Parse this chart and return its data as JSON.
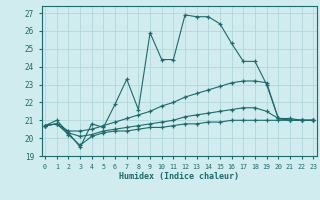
{
  "xlabel": "Humidex (Indice chaleur)",
  "background_color": "#d0ecee",
  "grid_color": "#b0d8dc",
  "line_color": "#1a6b6b",
  "xlim": [
    0,
    23
  ],
  "ylim": [
    19,
    27.4
  ],
  "xticks": [
    0,
    1,
    2,
    3,
    4,
    5,
    6,
    7,
    8,
    9,
    10,
    11,
    12,
    13,
    14,
    15,
    16,
    17,
    18,
    19,
    20,
    21,
    22,
    23
  ],
  "yticks": [
    19,
    20,
    21,
    22,
    23,
    24,
    25,
    26,
    27
  ],
  "series": [
    {
      "x": [
        0,
        1,
        2,
        3,
        4,
        5,
        6,
        7,
        8,
        9,
        10,
        11,
        12,
        13,
        14,
        15,
        16,
        17,
        18,
        19,
        20,
        21,
        22,
        23
      ],
      "y": [
        20.7,
        21.0,
        20.3,
        19.5,
        20.8,
        20.6,
        21.9,
        23.3,
        21.6,
        25.9,
        24.4,
        24.4,
        26.9,
        26.8,
        26.8,
        26.4,
        25.3,
        24.3,
        24.3,
        23.0,
        21.1,
        21.1,
        21.0,
        21.0
      ]
    },
    {
      "x": [
        0,
        1,
        2,
        3,
        4,
        5,
        6,
        7,
        8,
        9,
        10,
        11,
        12,
        13,
        14,
        15,
        16,
        17,
        18,
        19,
        20,
        21,
        22,
        23
      ],
      "y": [
        20.7,
        20.8,
        20.4,
        20.4,
        20.5,
        20.7,
        20.9,
        21.1,
        21.3,
        21.5,
        21.8,
        22.0,
        22.3,
        22.5,
        22.7,
        22.9,
        23.1,
        23.2,
        23.2,
        23.1,
        21.1,
        21.0,
        21.0,
        21.0
      ]
    },
    {
      "x": [
        0,
        1,
        2,
        3,
        4,
        5,
        6,
        7,
        8,
        9,
        10,
        11,
        12,
        13,
        14,
        15,
        16,
        17,
        18,
        19,
        20,
        21,
        22,
        23
      ],
      "y": [
        20.7,
        20.8,
        20.3,
        20.1,
        20.2,
        20.4,
        20.5,
        20.6,
        20.7,
        20.8,
        20.9,
        21.0,
        21.2,
        21.3,
        21.4,
        21.5,
        21.6,
        21.7,
        21.7,
        21.5,
        21.1,
        21.0,
        21.0,
        21.0
      ]
    },
    {
      "x": [
        0,
        1,
        2,
        3,
        4,
        5,
        6,
        7,
        8,
        9,
        10,
        11,
        12,
        13,
        14,
        15,
        16,
        17,
        18,
        19,
        20,
        21,
        22,
        23
      ],
      "y": [
        20.7,
        20.8,
        20.2,
        19.6,
        20.1,
        20.3,
        20.4,
        20.4,
        20.5,
        20.6,
        20.6,
        20.7,
        20.8,
        20.8,
        20.9,
        20.9,
        21.0,
        21.0,
        21.0,
        21.0,
        21.0,
        21.0,
        21.0,
        21.0
      ]
    }
  ]
}
